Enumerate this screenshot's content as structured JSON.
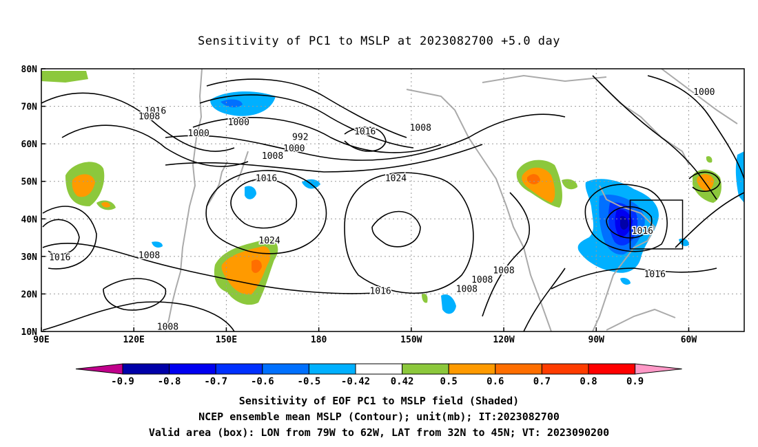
{
  "title": "Sensitivity of PC1 to MSLP at 2023082700 +5.0 day",
  "captions": [
    "Sensitivity of EOF PC1 to MSLP field (Shaded)",
    "NCEP ensemble mean MSLP (Contour); unit(mb); IT:2023082700",
    "Valid area (box): LON from 79W to 62W, LAT from 32N to 45N; VT: 2023090200"
  ],
  "map": {
    "lon_range": [
      90,
      318
    ],
    "lat_range": [
      10,
      80
    ],
    "lon_ticks": [
      {
        "lon": 90,
        "label": "90E"
      },
      {
        "lon": 120,
        "label": "120E"
      },
      {
        "lon": 150,
        "label": "150E"
      },
      {
        "lon": 180,
        "label": "180"
      },
      {
        "lon": 210,
        "label": "150W"
      },
      {
        "lon": 240,
        "label": "120W"
      },
      {
        "lon": 270,
        "label": "90W"
      },
      {
        "lon": 300,
        "label": "60W"
      }
    ],
    "lat_ticks": [
      {
        "lat": 10,
        "label": "10N"
      },
      {
        "lat": 20,
        "label": "20N"
      },
      {
        "lat": 30,
        "label": "30N"
      },
      {
        "lat": 40,
        "label": "40N"
      },
      {
        "lat": 50,
        "label": "50N"
      },
      {
        "lat": 60,
        "label": "60N"
      },
      {
        "lat": 70,
        "label": "70N"
      },
      {
        "lat": 80,
        "label": "80N"
      }
    ],
    "grid": "dotted",
    "valid_box": {
      "lon_min": 281,
      "lon_max": 298,
      "lat_min": 32,
      "lat_max": 45
    },
    "contour_labels": [
      {
        "text": "1016",
        "lon": 127,
        "lat": 68
      },
      {
        "text": "1008",
        "lon": 125,
        "lat": 66.5
      },
      {
        "text": "1000",
        "lon": 141,
        "lat": 62
      },
      {
        "text": "1000",
        "lon": 154,
        "lat": 65
      },
      {
        "text": "992",
        "lon": 174,
        "lat": 61
      },
      {
        "text": "1000",
        "lon": 172,
        "lat": 58
      },
      {
        "text": "1008",
        "lon": 165,
        "lat": 56
      },
      {
        "text": "1016",
        "lon": 195,
        "lat": 62.5
      },
      {
        "text": "1008",
        "lon": 213,
        "lat": 63.5
      },
      {
        "text": "1016",
        "lon": 163,
        "lat": 50
      },
      {
        "text": "1024",
        "lon": 205,
        "lat": 50
      },
      {
        "text": "1024",
        "lon": 164,
        "lat": 33.5
      },
      {
        "text": "1008",
        "lon": 125,
        "lat": 29.5
      },
      {
        "text": "1016",
        "lon": 96,
        "lat": 29
      },
      {
        "text": "1016",
        "lon": 200,
        "lat": 20
      },
      {
        "text": "1008",
        "lon": 228,
        "lat": 20.5
      },
      {
        "text": "1008",
        "lon": 233,
        "lat": 23
      },
      {
        "text": "1008",
        "lon": 240,
        "lat": 25.5
      },
      {
        "text": "1016",
        "lon": 285,
        "lat": 36
      },
      {
        "text": "1016",
        "lon": 289,
        "lat": 24.5
      },
      {
        "text": "1000",
        "lon": 305,
        "lat": 73
      },
      {
        "text": "1008",
        "lon": 131,
        "lat": 10.5
      }
    ]
  },
  "colorbar": {
    "labels": [
      "-0.9",
      "-0.8",
      "-0.7",
      "-0.6",
      "-0.5",
      "-0.42",
      "0.42",
      "0.5",
      "0.6",
      "0.7",
      "0.8",
      "0.9"
    ],
    "low_color": "#c0008b",
    "high_color": "#ff99c7",
    "colors": [
      "#0000a8",
      "#0000f0",
      "#0030ff",
      "#0070ff",
      "#00b0ff",
      "#ffffff",
      "#8cc83c",
      "#ff9a00",
      "#ff6e00",
      "#ff3c00",
      "#ff0000"
    ]
  }
}
